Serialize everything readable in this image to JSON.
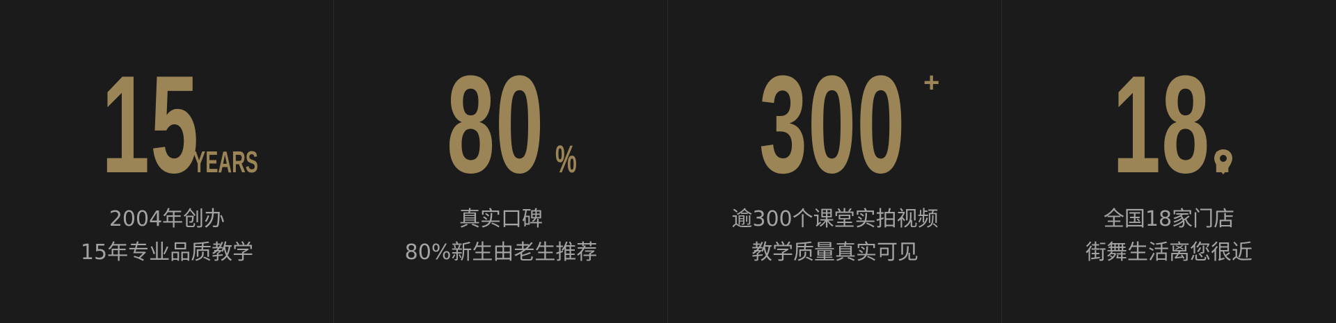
{
  "colors": {
    "background": "#1b1b1b",
    "accent_gold": "#9b8455",
    "text_gray": "#a3a3a3",
    "divider": "#2b2b2b"
  },
  "stats": [
    {
      "value": "15",
      "suffix": "YEARS",
      "line1": "2004年创办",
      "line2": "15年专业品质教学"
    },
    {
      "value": "80",
      "suffix": "%",
      "line1": "真实口碑",
      "line2": "80%新生由老生推荐"
    },
    {
      "value": "300",
      "suffix": "+",
      "line1": "逾300个课堂实拍视频",
      "line2": "教学质量真实可见"
    },
    {
      "value": "18.",
      "suffix_icon": "location-pin-icon",
      "line1": "全国18家门店",
      "line2": "街舞生活离您很近"
    }
  ]
}
